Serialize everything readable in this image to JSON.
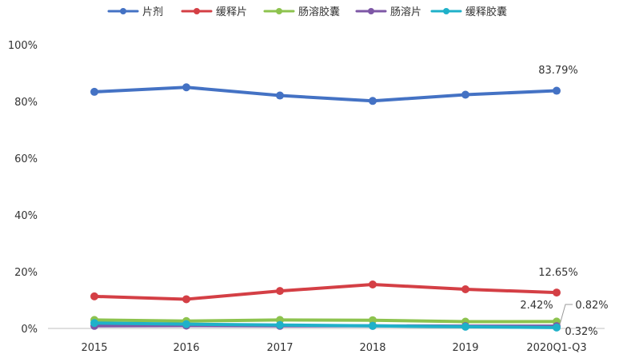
{
  "chart_data": {
    "type": "line",
    "categories": [
      "2015",
      "2016",
      "2017",
      "2018",
      "2019",
      "2020Q1-Q3"
    ],
    "ylim": [
      0,
      100
    ],
    "yticks": [
      0,
      20,
      40,
      60,
      80,
      100
    ],
    "ytick_labels": [
      "0%",
      "20%",
      "40%",
      "60%",
      "80%",
      "100%"
    ],
    "grid": false,
    "legend_position": "top",
    "series": [
      {
        "name": "片剂",
        "color": "#4472c4",
        "values": [
          83.4,
          85.0,
          82.1,
          80.2,
          82.4,
          83.79
        ]
      },
      {
        "name": "缓释片",
        "color": "#d43f45",
        "values": [
          11.3,
          10.3,
          13.2,
          15.5,
          13.8,
          12.65
        ]
      },
      {
        "name": "肠溶胶囊",
        "color": "#8dc34e",
        "values": [
          3.0,
          2.6,
          3.0,
          2.9,
          2.4,
          2.42
        ]
      },
      {
        "name": "肠溶片",
        "color": "#7e57a6",
        "values": [
          0.9,
          1.0,
          0.9,
          0.9,
          0.8,
          0.82
        ]
      },
      {
        "name": "缓释胶囊",
        "color": "#1fb1c9",
        "values": [
          1.9,
          1.5,
          1.2,
          0.9,
          0.6,
          0.32
        ]
      }
    ],
    "data_labels": [
      {
        "text": "83.79%",
        "series": 0,
        "point": 5
      },
      {
        "text": "12.65%",
        "series": 1,
        "point": 5
      },
      {
        "text": "2.42%",
        "series": 2,
        "point": 5
      },
      {
        "text": "0.82%",
        "series": 3,
        "point": 5
      },
      {
        "text": "0.32%",
        "series": 4,
        "point": 5
      }
    ]
  }
}
